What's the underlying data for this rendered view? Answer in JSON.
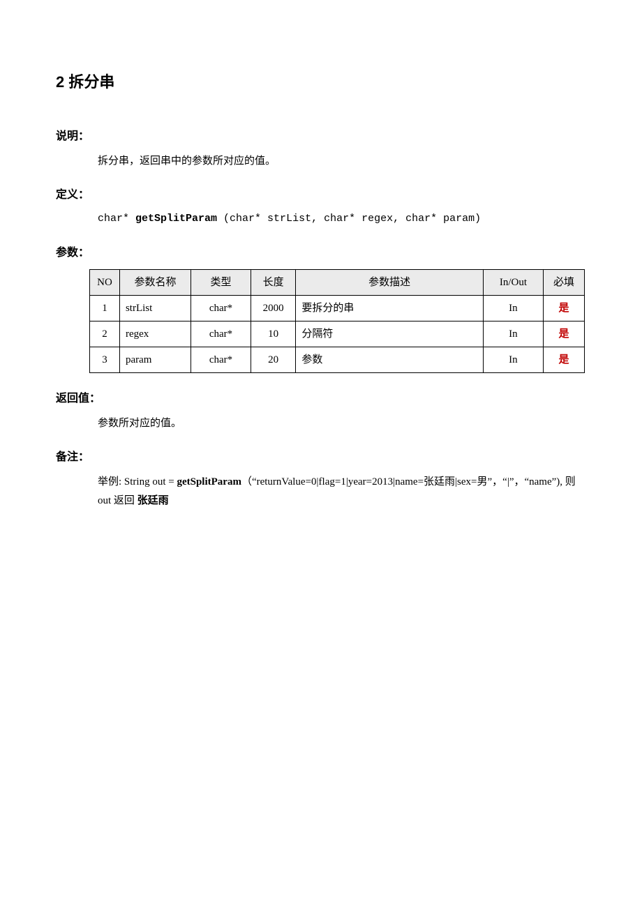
{
  "heading": "2 拆分串",
  "sections": {
    "shuoming_label": "说明：",
    "shuoming_text": "拆分串，返回串中的参数所对应的值。",
    "dingyi_label": "定义：",
    "dingyi_prefix": "char* ",
    "dingyi_fn": "getSplitParam",
    "dingyi_args": " (char* strList, char* regex, char* param)",
    "canshu_label": "参数：",
    "fanhuizhi_label": "返回值：",
    "fanhuizhi_text": "参数所对应的值。",
    "beizhu_label": "备注：",
    "beizhu_prefix": "举例: String out = ",
    "beizhu_fn": "getSplitParam",
    "beizhu_mid": "（“returnValue=0|flag=1|year=2013|name=张廷雨|sex=男”，“|”，“name”), 则 out 返回 ",
    "beizhu_ret": "张廷雨"
  },
  "table": {
    "headers": {
      "no": "NO",
      "name": "参数名称",
      "type": "类型",
      "len": "长度",
      "desc": "参数描述",
      "io": "In/Out",
      "req": "必填"
    },
    "rows": [
      {
        "no": "1",
        "name": "strList",
        "type": "char*",
        "len": "2000",
        "desc": "要拆分的串",
        "io": "In",
        "req": "是"
      },
      {
        "no": "2",
        "name": "regex",
        "type": "char*",
        "len": "10",
        "desc": "分隔符",
        "io": "In",
        "req": "是"
      },
      {
        "no": "3",
        "name": "param",
        "type": "char*",
        "len": "20",
        "desc": "参数",
        "io": "In",
        "req": "是"
      }
    ]
  }
}
